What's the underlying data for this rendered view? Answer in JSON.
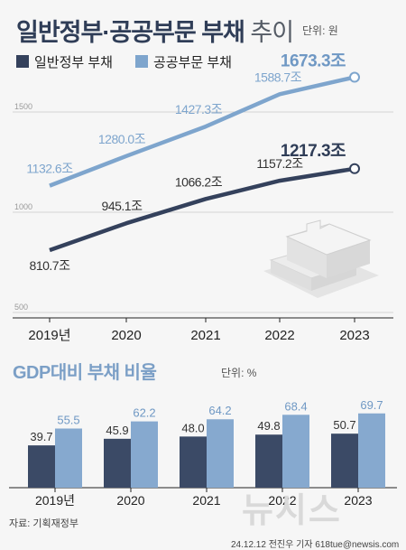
{
  "header": {
    "title_bold": "일반정부·공공부문 부채",
    "title_light": "추이",
    "unit": "단위: 원"
  },
  "legend": [
    "일반정부 부채",
    "공공부문 부채"
  ],
  "colors": {
    "general": "#34415c",
    "public": "#7ea5cd",
    "bar_general": "#3b4a66",
    "bar_public": "#86a9cf"
  },
  "chart_data": [
    {
      "type": "line",
      "title": "일반정부·공공부문 부채 추이",
      "unit": "단위: 원",
      "categories": [
        "2019년",
        "2020",
        "2021",
        "2022",
        "2023"
      ],
      "ylim": [
        500,
        1750
      ],
      "yticks": [
        500,
        1000,
        1500
      ],
      "grid": true,
      "legend_position": "top-left",
      "series": [
        {
          "name": "일반정부 부채",
          "values": [
            810.7,
            945.1,
            1066.2,
            1157.2,
            1217.3
          ],
          "labels": [
            "810.7조",
            "945.1조",
            "1066.2조",
            "1157.2조",
            "1217.3조"
          ]
        },
        {
          "name": "공공부문 부채",
          "values": [
            1132.6,
            1280.0,
            1427.3,
            1588.7,
            1673.3
          ],
          "labels": [
            "1132.6조",
            "1280.0조",
            "1427.3조",
            "1588.7조",
            "1673.3조"
          ]
        }
      ]
    },
    {
      "type": "bar",
      "title": "GDP대비 부채 비율",
      "unit": "단위: %",
      "categories": [
        "2019년",
        "2020",
        "2021",
        "2022",
        "2023"
      ],
      "ylim": [
        0,
        75
      ],
      "series": [
        {
          "name": "일반정부 부채",
          "values": [
            39.7,
            45.9,
            48.0,
            49.8,
            50.7
          ]
        },
        {
          "name": "공공부문 부채",
          "values": [
            55.5,
            62.2,
            64.2,
            68.4,
            69.7
          ]
        }
      ]
    }
  ],
  "bar_section": {
    "title": "GDP대비 부채 비율",
    "unit": "단위: %"
  },
  "source": "자료: 기획재정부",
  "credit": "24.12.12 전진우 기자 618tue@newsis.com",
  "watermark": "뉴시스"
}
